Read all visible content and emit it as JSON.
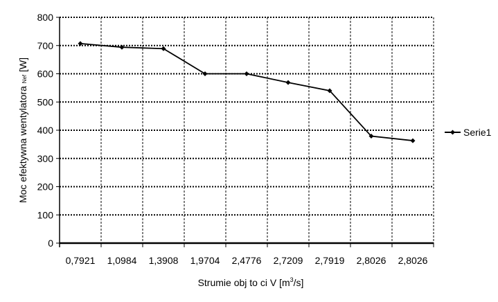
{
  "chart_data": {
    "type": "line",
    "title": "",
    "xlabel": "Strumie  obj  to  ci V [m",
    "xlabel_sup": "3",
    "xlabel_end": "/s]",
    "ylabel": "Moc efektywna wentylatora",
    "ylabel_sub": "Nef",
    "ylabel_end": "[W]",
    "categories": [
      "0,7921",
      "1,0984",
      "1,3908",
      "1,9704",
      "2,4776",
      "2,7209",
      "2,7919",
      "2,8026",
      "2,8026"
    ],
    "series": [
      {
        "name": "Serie1",
        "values": [
          707,
          694,
          689,
          600,
          600,
          569,
          540,
          379,
          363
        ],
        "color": "#000000"
      }
    ],
    "ylim": [
      0,
      800
    ],
    "yticks": [
      "0",
      "100",
      "200",
      "300",
      "400",
      "500",
      "600",
      "700",
      "800"
    ],
    "grid": true,
    "legend": "right"
  }
}
